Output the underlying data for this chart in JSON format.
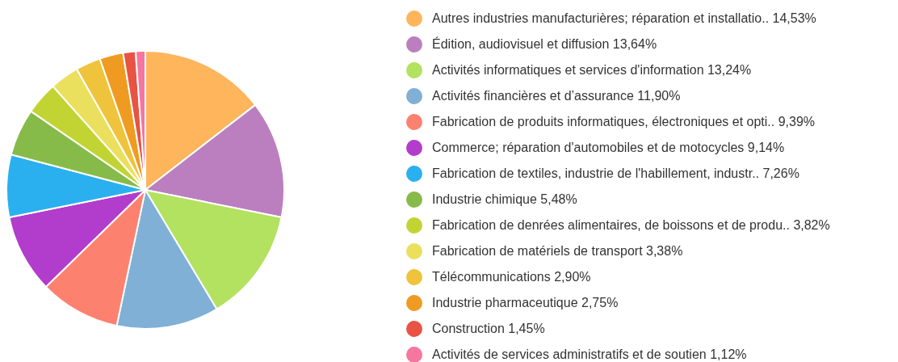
{
  "chart_data": {
    "type": "pie",
    "categories": [
      "Autres industries manufacturières; réparation et installatio..",
      "Édition, audiovisuel et diffusion",
      "Activités informatiques et services d'information",
      "Activités financières et d’assurance",
      "Fabrication de produits informatiques, électroniques et opti..",
      "Commerce; réparation d'automobiles et de motocycles",
      "Fabrication de textiles, industrie de l'habillement, industr..",
      "Industrie chimique",
      "Fabrication de denrées alimentaires, de boissons et de produ..",
      "Fabrication de matériels de transport",
      "Télécommunications",
      "Industrie pharmaceutique",
      "Construction",
      "Activités de services administratifs et de soutien"
    ],
    "values": [
      14.53,
      13.64,
      13.24,
      11.9,
      9.39,
      9.14,
      7.26,
      5.48,
      3.82,
      3.38,
      2.9,
      2.75,
      1.45,
      1.12
    ],
    "value_labels": [
      "14,53%",
      "13,64%",
      "13,24%",
      "11,90%",
      "9,39%",
      "9,14%",
      "7,26%",
      "5,48%",
      "3,82%",
      "3,38%",
      "2,90%",
      "2,75%",
      "1,45%",
      "1,12%"
    ],
    "colors": [
      "#feb55c",
      "#bb7fbf",
      "#b3e160",
      "#80b0d6",
      "#fd816f",
      "#b23ccb",
      "#2bb0ef",
      "#86bb49",
      "#c2d433",
      "#ebe05e",
      "#efc33b",
      "#ef9b22",
      "#e85343",
      "#f5769f"
    ],
    "legend": "right"
  }
}
